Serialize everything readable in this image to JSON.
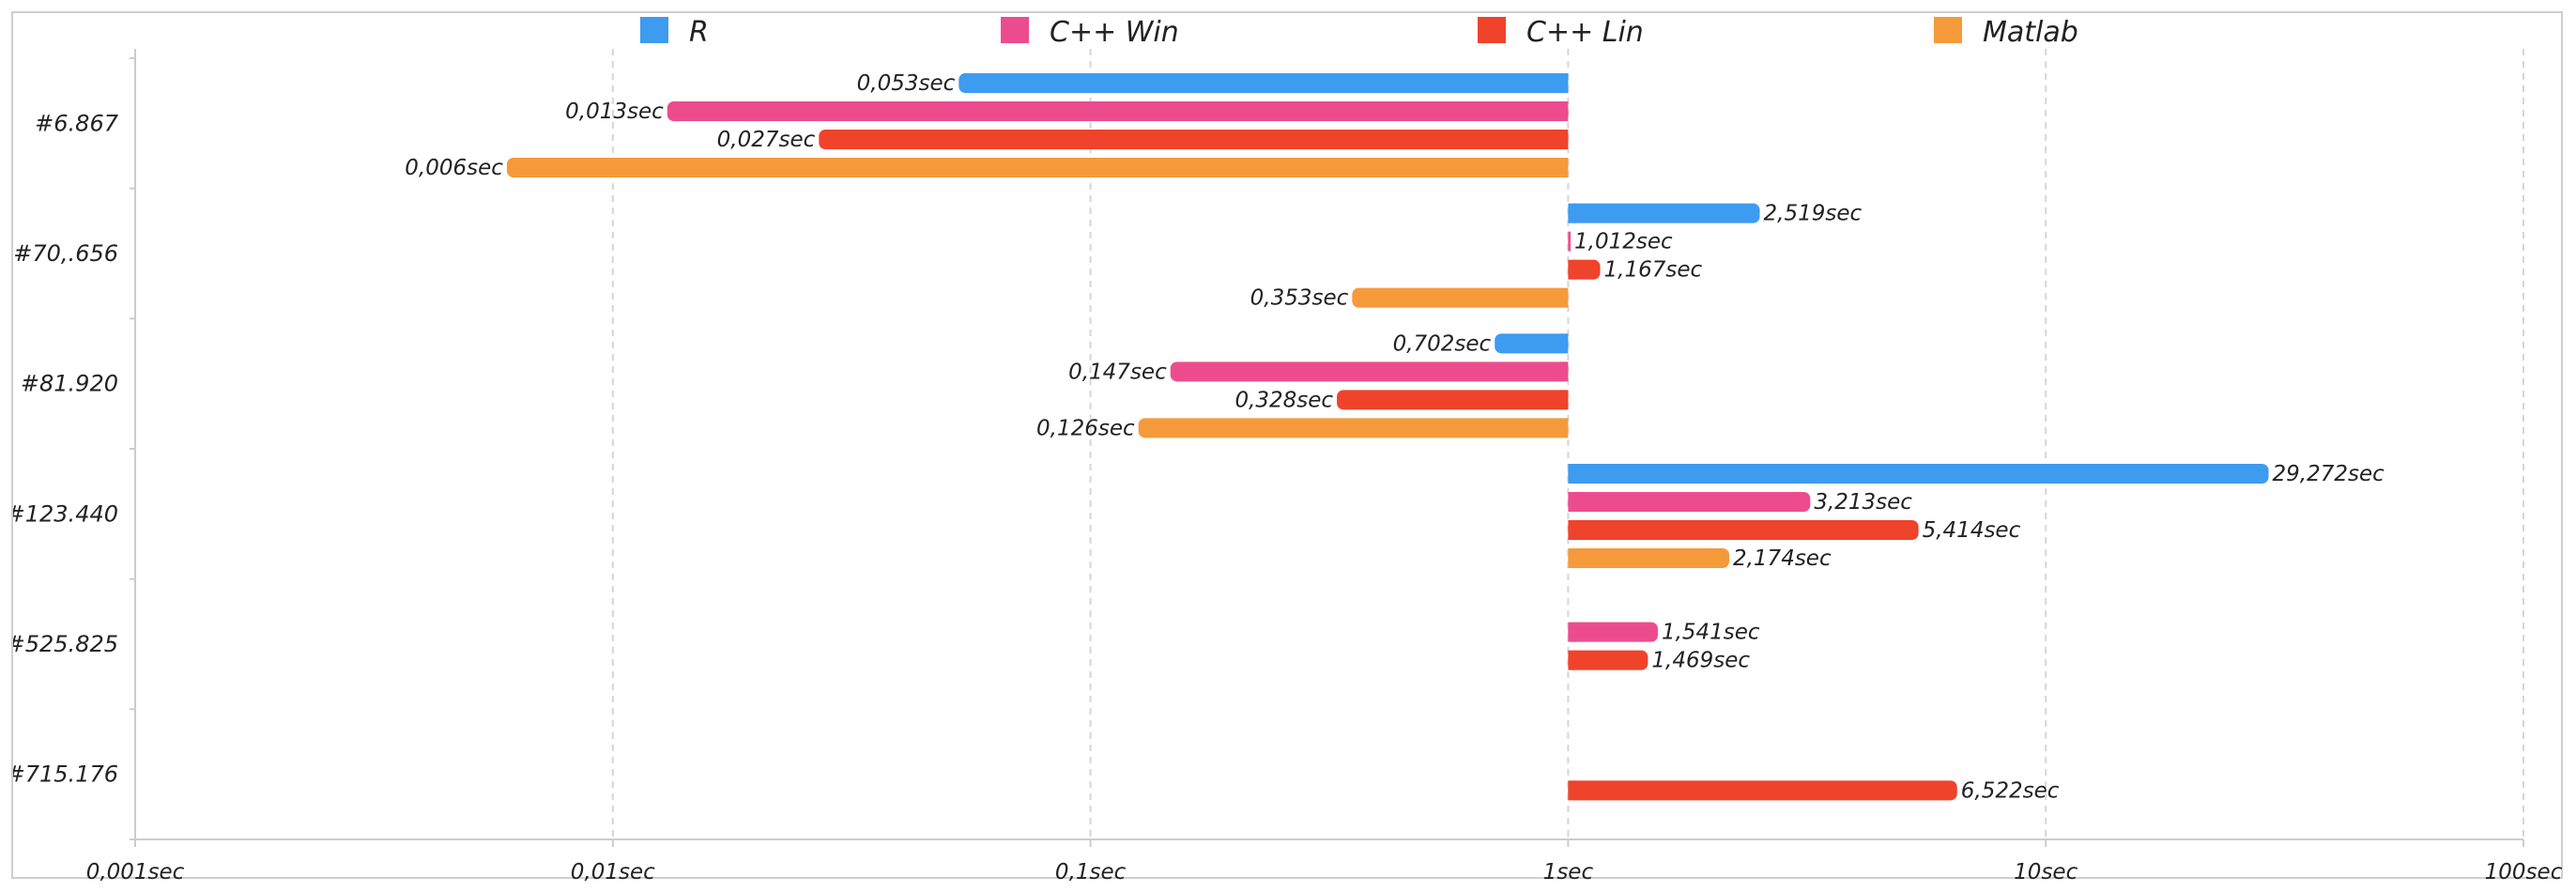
{
  "chart_data": {
    "type": "bar",
    "orientation": "horizontal",
    "x_scale": "log",
    "x_base_value": 1,
    "xlim": [
      0.001,
      100
    ],
    "x_ticks": [
      0.001,
      0.01,
      0.1,
      1,
      10,
      100
    ],
    "x_tick_labels": [
      "0,001sec",
      "0,01sec",
      "0,1sec",
      "1sec",
      "10sec",
      "100sec"
    ],
    "grid": "vertical dashed",
    "legend_position": "top",
    "categories": [
      "#6.867",
      "#70,.656",
      "#81.920",
      "#123.440",
      "#525.825",
      "#715.176"
    ],
    "series": [
      {
        "name": "R",
        "color": "#3d9bf0",
        "values": [
          0.053,
          2.519,
          0.702,
          29.272,
          null,
          null
        ],
        "labels": [
          "0,053sec",
          "2,519sec",
          "0,702sec",
          "29,272sec",
          "",
          ""
        ]
      },
      {
        "name": "C++ Win",
        "color": "#ec4c8e",
        "values": [
          0.013,
          1.012,
          0.147,
          3.213,
          1.541,
          null
        ],
        "labels": [
          "0,013sec",
          "1,012sec",
          "0,147sec",
          "3,213sec",
          "1,541sec",
          ""
        ]
      },
      {
        "name": "C++ Lin",
        "color": "#ef432c",
        "values": [
          0.027,
          1.167,
          0.328,
          5.414,
          1.469,
          6.522
        ],
        "labels": [
          "0,027sec",
          "1,167sec",
          "0,328sec",
          "5,414sec",
          "1,469sec",
          "6,522sec"
        ]
      },
      {
        "name": "Matlab",
        "color": "#f59a3a",
        "values": [
          0.006,
          0.353,
          0.126,
          2.174,
          null,
          null
        ],
        "labels": [
          "0,006sec",
          "0,353sec",
          "0,126sec",
          "2,174sec",
          "",
          ""
        ]
      }
    ]
  }
}
